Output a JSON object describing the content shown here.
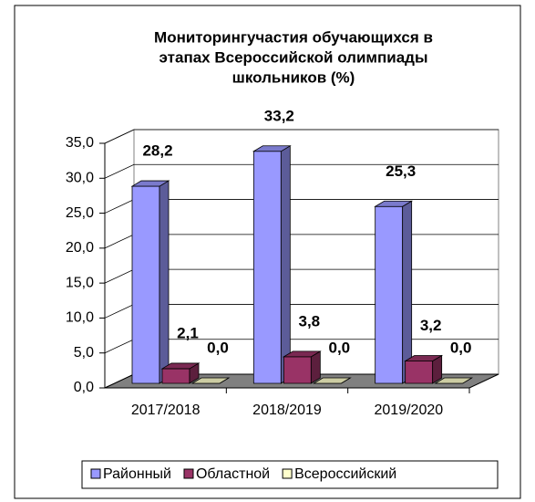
{
  "chart_data": {
    "type": "bar3d",
    "title": [
      "Мониторингучастия обучающихся в",
      "этапах Всероссийской олимпиады",
      "школьников (%)"
    ],
    "categories": [
      "2017/2018",
      "2018/2019",
      "2019/2020"
    ],
    "series": [
      {
        "name": "Районный",
        "color": "#9999ff",
        "values": [
          28.2,
          33.2,
          25.3
        ],
        "value_labels": [
          "28,2",
          "33,2",
          "25,3"
        ]
      },
      {
        "name": "Областной",
        "color": "#993366",
        "values": [
          2.1,
          3.8,
          3.2
        ],
        "value_labels": [
          "2,1",
          "3,8",
          "3,2"
        ]
      },
      {
        "name": "Всероссийский",
        "color": "#ffffcc",
        "values": [
          0,
          0,
          0
        ],
        "value_labels": [
          "0,0",
          "0,0",
          "0,0"
        ]
      }
    ],
    "ylim": [
      0,
      35
    ],
    "yticks": [
      {
        "value": 0,
        "label": "0,0"
      },
      {
        "value": 5,
        "label": "5,0"
      },
      {
        "value": 10,
        "label": "10,0"
      },
      {
        "value": 15,
        "label": "15,0"
      },
      {
        "value": 20,
        "label": "20,0"
      },
      {
        "value": 25,
        "label": "25,0"
      },
      {
        "value": 30,
        "label": "30,0"
      },
      {
        "value": 35,
        "label": "35,0"
      }
    ],
    "grid": true,
    "legend": "bottom"
  }
}
